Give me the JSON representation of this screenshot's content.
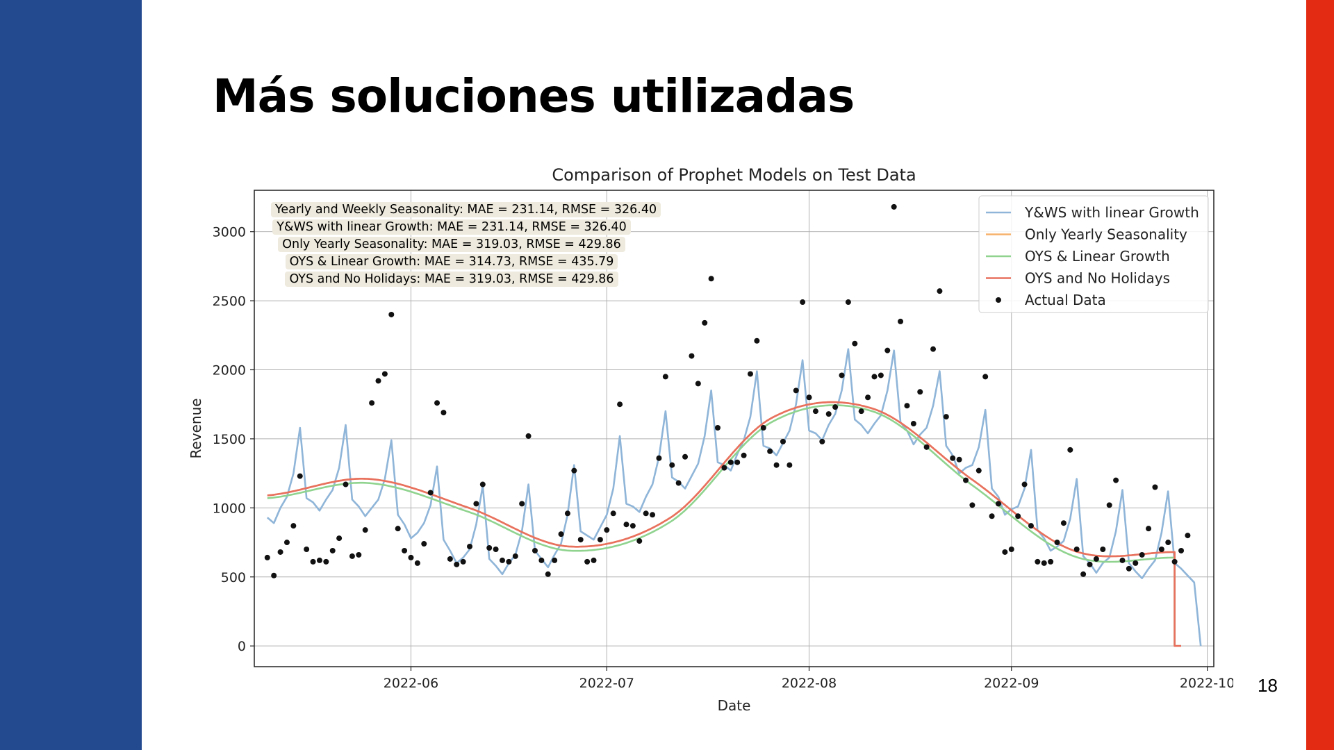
{
  "slide": {
    "title": "Más soluciones utilizadas",
    "page_number": "18",
    "accent_left": "#234a8f",
    "accent_right": "#e22b12"
  },
  "chart_data": {
    "type": "line",
    "title": "Comparison of Prophet Models on Test Data",
    "xlabel": "Date",
    "ylabel": "Revenue",
    "x_range": [
      "2022-05-08",
      "2022-10-02"
    ],
    "ylim": [
      -150,
      3300
    ],
    "grid": true,
    "legend_position": "top-right",
    "x_ticks": [
      "2022-06-01",
      "2022-07-01",
      "2022-08-01",
      "2022-09-01",
      "2022-10-01"
    ],
    "x_tick_labels": [
      "2022-06",
      "2022-07",
      "2022-08",
      "2022-09",
      "2022-10"
    ],
    "y_ticks": [
      0,
      500,
      1000,
      1500,
      2000,
      2500,
      3000
    ],
    "annotations": [
      "Yearly and Weekly Seasonality: MAE = 231.14, RMSE = 326.40",
      "Y&WS with linear Growth: MAE = 231.14, RMSE = 326.40",
      "Only Yearly Seasonality: MAE = 319.03, RMSE = 429.86",
      "OYS & Linear Growth: MAE = 314.73, RMSE = 435.79",
      "OYS and No Holidays: MAE = 319.03, RMSE = 429.86"
    ],
    "start_date": "2022-05-10",
    "series": [
      {
        "name": "Y&WS with linear Growth",
        "color": "#8fb5d8",
        "kind": "line",
        "values": [
          930,
          890,
          1000,
          1080,
          1250,
          1580,
          1070,
          1040,
          980,
          1060,
          1130,
          1290,
          1600,
          1060,
          1010,
          940,
          1000,
          1060,
          1210,
          1490,
          950,
          880,
          780,
          820,
          890,
          1020,
          1300,
          770,
          690,
          600,
          640,
          700,
          880,
          1160,
          630,
          580,
          520,
          600,
          660,
          830,
          1170,
          690,
          630,
          570,
          660,
          740,
          950,
          1310,
          830,
          800,
          770,
          860,
          950,
          1140,
          1520,
          1030,
          1010,
          970,
          1080,
          1170,
          1370,
          1700,
          1220,
          1190,
          1140,
          1230,
          1320,
          1520,
          1850,
          1330,
          1310,
          1270,
          1390,
          1490,
          1660,
          1990,
          1450,
          1430,
          1380,
          1470,
          1560,
          1750,
          2070,
          1560,
          1540,
          1490,
          1600,
          1680,
          1850,
          2150,
          1640,
          1600,
          1540,
          1610,
          1670,
          1850,
          2140,
          1620,
          1560,
          1460,
          1530,
          1580,
          1740,
          1990,
          1450,
          1380,
          1250,
          1290,
          1310,
          1440,
          1710,
          1140,
          1080,
          950,
          990,
          1010,
          1140,
          1420,
          840,
          780,
          690,
          720,
          760,
          920,
          1210,
          650,
          600,
          530,
          600,
          640,
          830,
          1130,
          600,
          540,
          490,
          560,
          620,
          820,
          1120,
          600,
          560,
          510,
          460,
          0
        ]
      },
      {
        "name": "Only Yearly Seasonality",
        "color": "#f7b26b",
        "kind": "smooth",
        "values": [
          1090,
          1210,
          1000,
          720,
          930,
          1650,
          1720,
          1200,
          690,
          680,
          0
        ]
      },
      {
        "name": "OYS & Linear Growth",
        "color": "#8fd38f",
        "kind": "smooth",
        "values": [
          1070,
          1180,
          970,
          690,
          900,
          1620,
          1700,
          1160,
          650,
          640,
          0
        ]
      },
      {
        "name": "OYS and No Holidays",
        "color": "#e8705e",
        "kind": "smooth",
        "values": [
          1090,
          1210,
          1000,
          720,
          930,
          1650,
          1720,
          1200,
          690,
          680,
          0
        ]
      },
      {
        "name": "Actual Data",
        "color": "#111111",
        "kind": "points",
        "values": [
          640,
          510,
          680,
          750,
          870,
          1230,
          700,
          610,
          620,
          610,
          690,
          780,
          1170,
          650,
          660,
          840,
          1760,
          1920,
          1970,
          2400,
          850,
          690,
          640,
          600,
          740,
          1110,
          1760,
          1690,
          630,
          590,
          610,
          720,
          1030,
          1170,
          710,
          700,
          620,
          610,
          650,
          1030,
          1520,
          690,
          620,
          520,
          620,
          810,
          960,
          1270,
          770,
          610,
          620,
          770,
          840,
          960,
          1750,
          880,
          870,
          760,
          960,
          950,
          1360,
          1950,
          1310,
          1180,
          1370,
          2100,
          1900,
          2340,
          2660,
          1580,
          1290,
          1330,
          1330,
          1380,
          1970,
          2210,
          1580,
          1410,
          1310,
          1480,
          1310,
          1850,
          2490,
          1800,
          1700,
          1480,
          1680,
          1730,
          1960,
          2490,
          2190,
          1700,
          1800,
          1950,
          1960,
          2140,
          3180,
          2350,
          1740,
          1610,
          1840,
          1440,
          2150,
          2570,
          1660,
          1360,
          1350,
          1200,
          1020,
          1270,
          1950,
          940,
          1030,
          680,
          700,
          940,
          1170,
          870,
          610,
          600,
          610,
          750,
          890,
          1420,
          700,
          520,
          590,
          630,
          700,
          1020,
          1200,
          620,
          560,
          600,
          660,
          850,
          1150,
          700,
          750,
          610,
          690,
          800
        ]
      }
    ]
  }
}
